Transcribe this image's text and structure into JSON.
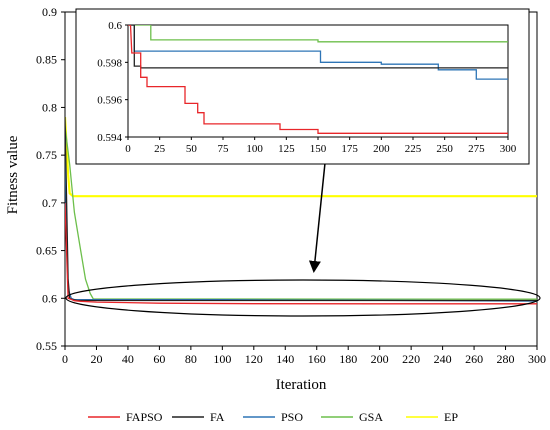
{
  "chart_data": [
    {
      "type": "line",
      "title": "",
      "xlabel": "Iteration",
      "ylabel": "Fitness value",
      "xlim": [
        0,
        300
      ],
      "ylim": [
        0.55,
        0.9
      ],
      "xticks": [
        "0",
        "20",
        "40",
        "60",
        "80",
        "100",
        "120",
        "140",
        "160",
        "180",
        "200",
        "220",
        "240",
        "260",
        "280",
        "300"
      ],
      "yticks": [
        "0.55",
        "0.6",
        "0.65",
        "0.7",
        "0.75",
        "0.8",
        "0.85",
        "0.9"
      ],
      "grid": false,
      "legend_position": "bottom",
      "series": [
        {
          "name": "FAPSO",
          "color": "#e8262a",
          "x": [
            0,
            2,
            4,
            6,
            10,
            20,
            60,
            120,
            200,
            300
          ],
          "y": [
            0.7,
            0.6,
            0.5988,
            0.5975,
            0.5968,
            0.596,
            0.5948,
            0.5943,
            0.5942,
            0.5942
          ]
        },
        {
          "name": "FA",
          "color": "#222222",
          "x": [
            0,
            2,
            3,
            5,
            8,
            50,
            150,
            300
          ],
          "y": [
            0.79,
            0.62,
            0.6,
            0.5985,
            0.5977,
            0.5977,
            0.5977,
            0.5977
          ]
        },
        {
          "name": "PSO",
          "color": "#2e75b6",
          "x": [
            0,
            2,
            4,
            6,
            20,
            100,
            150,
            200,
            250,
            300
          ],
          "y": [
            0.75,
            0.61,
            0.6,
            0.5986,
            0.5986,
            0.5986,
            0.598,
            0.5979,
            0.5975,
            0.597
          ]
        },
        {
          "name": "GSA",
          "color": "#6dbf4b",
          "x": [
            0,
            3,
            6,
            10,
            13,
            16,
            18,
            20,
            50,
            100,
            200,
            300
          ],
          "y": [
            0.78,
            0.74,
            0.69,
            0.65,
            0.62,
            0.605,
            0.5992,
            0.5992,
            0.5992,
            0.5992,
            0.5991,
            0.599
          ]
        },
        {
          "name": "EP",
          "color": "#ffff00",
          "x": [
            0,
            1,
            2,
            3,
            5,
            10,
            300
          ],
          "y": [
            0.79,
            0.76,
            0.73,
            0.71,
            0.707,
            0.707,
            0.707
          ]
        }
      ]
    },
    {
      "type": "line",
      "title": "",
      "xlabel": "",
      "ylabel": "",
      "xlim": [
        0,
        300
      ],
      "ylim": [
        0.594,
        0.6
      ],
      "xticks": [
        "0",
        "25",
        "50",
        "75",
        "100",
        "125",
        "150",
        "175",
        "200",
        "225",
        "250",
        "275",
        "300"
      ],
      "yticks": [
        "0.594",
        "0.596",
        "0.598",
        "0.6"
      ],
      "series": [
        {
          "color": "#e8262a",
          "x": [
            0,
            2,
            3,
            10,
            10,
            15,
            15,
            45,
            45,
            55,
            55,
            60,
            60,
            120,
            120,
            150,
            150,
            300
          ],
          "y": [
            0.6,
            0.6,
            0.5985,
            0.5985,
            0.5972,
            0.5972,
            0.5967,
            0.5967,
            0.5958,
            0.5958,
            0.5953,
            0.5953,
            0.5947,
            0.5947,
            0.5944,
            0.5944,
            0.5942,
            0.5942
          ]
        },
        {
          "color": "#222222",
          "x": [
            0,
            5,
            5,
            10,
            10,
            300
          ],
          "y": [
            0.6,
            0.6,
            0.5978,
            0.5978,
            0.5977,
            0.5977
          ]
        },
        {
          "color": "#2e75b6",
          "x": [
            0,
            5,
            5,
            152,
            152,
            200,
            200,
            245,
            245,
            275,
            275,
            300
          ],
          "y": [
            0.6,
            0.6,
            0.5986,
            0.5986,
            0.598,
            0.598,
            0.5979,
            0.5979,
            0.5976,
            0.5976,
            0.5971,
            0.5971
          ]
        },
        {
          "color": "#6dbf4b",
          "x": [
            0,
            18,
            18,
            150,
            150,
            300
          ],
          "y": [
            0.6,
            0.6,
            0.5992,
            0.5992,
            0.5991,
            0.5991
          ]
        }
      ]
    }
  ]
}
